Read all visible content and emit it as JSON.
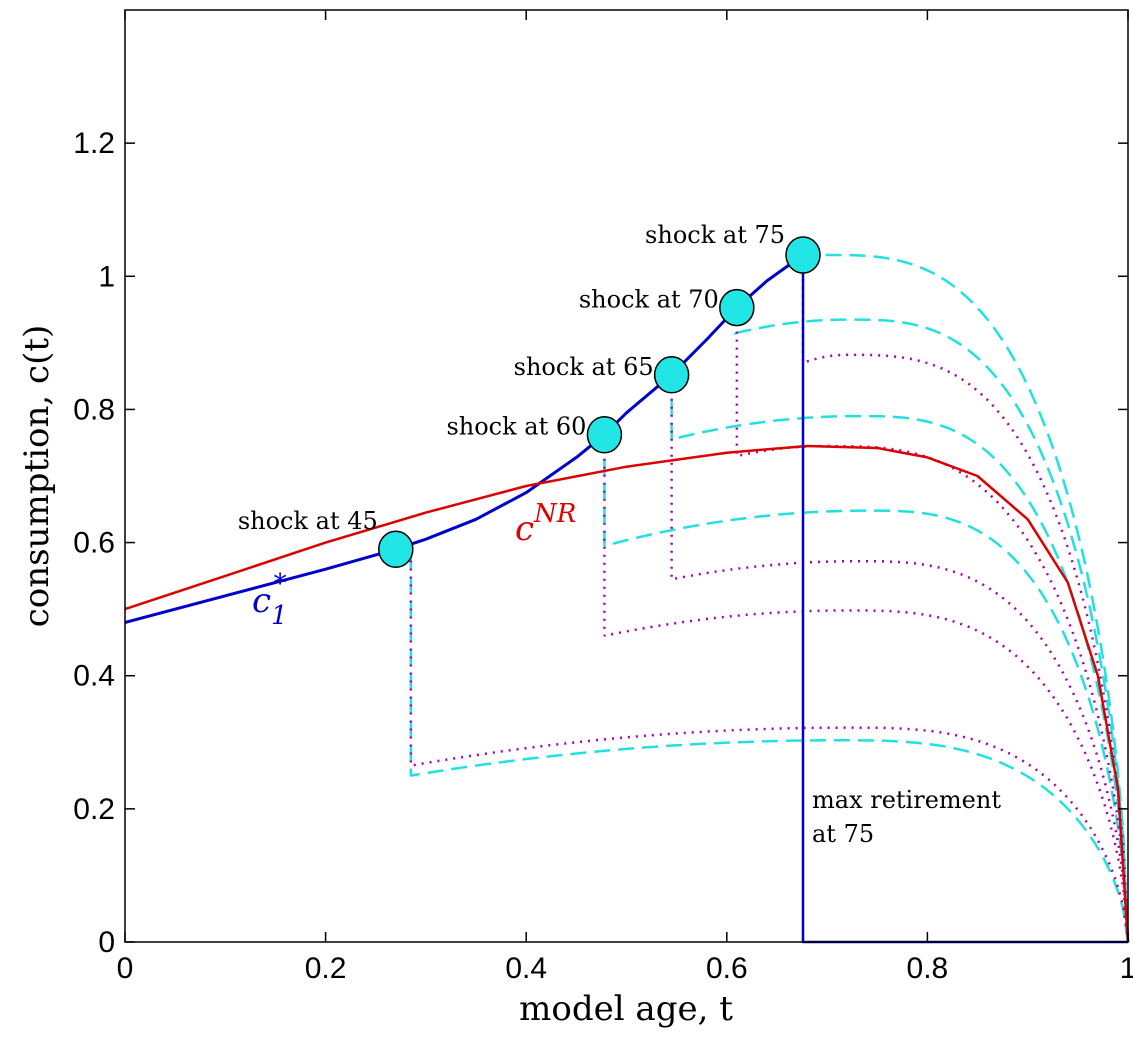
{
  "chart_data": {
    "type": "line",
    "xlabel": "model age, t",
    "ylabel": "consumption, c(t)",
    "xlim": [
      0,
      1
    ],
    "ylim": [
      0,
      1.4
    ],
    "xticks": [
      "0",
      "0.2",
      "0.4",
      "0.6",
      "0.8",
      "1"
    ],
    "yticks": [
      "0",
      "0.2",
      "0.4",
      "0.6",
      "0.8",
      "1",
      "1.2"
    ],
    "grid": false,
    "colors": {
      "c1_star": "#0000cc",
      "cNR": "#dd0000",
      "dashed": "#22e0e0",
      "dotted": "#aa00aa",
      "marker_fill": "#22e6e6"
    },
    "series": [
      {
        "name": "c1*",
        "style": "solid",
        "color": "#0000cc",
        "x": [
          0,
          0.1,
          0.2,
          0.27,
          0.3,
          0.35,
          0.4,
          0.45,
          0.478,
          0.5,
          0.545,
          0.58,
          0.61,
          0.64,
          0.676
        ],
        "y": [
          0.48,
          0.52,
          0.56,
          0.59,
          0.605,
          0.635,
          0.675,
          0.728,
          0.762,
          0.795,
          0.852,
          0.905,
          0.953,
          0.993,
          1.032
        ]
      },
      {
        "name": "cNR",
        "style": "solid",
        "color": "#dd0000",
        "x": [
          0,
          0.1,
          0.2,
          0.3,
          0.4,
          0.5,
          0.6,
          0.68,
          0.75,
          0.8,
          0.85,
          0.9,
          0.94,
          0.97,
          0.99,
          1.0
        ],
        "y": [
          0.5,
          0.55,
          0.6,
          0.645,
          0.685,
          0.714,
          0.735,
          0.745,
          0.742,
          0.728,
          0.7,
          0.635,
          0.54,
          0.4,
          0.23,
          0.0
        ]
      },
      {
        "name": "",
        "style": "max-retirement",
        "color": "#0000cc",
        "x": [
          0.676,
          0.676,
          1.0
        ],
        "y": [
          1.032,
          0.0,
          0.0
        ]
      },
      {
        "name": "",
        "style": "dashed",
        "color": "#22e0e0",
        "start_x": 0.285,
        "start_y": 0.25,
        "peak_x": 0.71,
        "peak_y": 0.303,
        "shock_x": 0.285,
        "shock_y": 0.585
      },
      {
        "name": "",
        "style": "dotted",
        "color": "#aa00aa",
        "start_x": 0.285,
        "start_y": 0.265,
        "peak_x": 0.72,
        "peak_y": 0.322,
        "shock_x": 0.285,
        "shock_y": 0.585
      },
      {
        "name": "",
        "style": "dashed",
        "color": "#22e0e0",
        "start_x": 0.478,
        "start_y": 0.595,
        "peak_x": 0.74,
        "peak_y": 0.648,
        "shock_x": 0.478,
        "shock_y": 0.762
      },
      {
        "name": "",
        "style": "dotted",
        "color": "#aa00aa",
        "start_x": 0.478,
        "start_y": 0.46,
        "peak_x": 0.72,
        "peak_y": 0.498,
        "shock_x": 0.478,
        "shock_y": 0.762
      },
      {
        "name": "",
        "style": "dashed",
        "color": "#22e0e0",
        "start_x": 0.545,
        "start_y": 0.755,
        "peak_x": 0.73,
        "peak_y": 0.79,
        "shock_x": 0.545,
        "shock_y": 0.852
      },
      {
        "name": "",
        "style": "dotted",
        "color": "#aa00aa",
        "start_x": 0.545,
        "start_y": 0.545,
        "peak_x": 0.73,
        "peak_y": 0.572,
        "shock_x": 0.545,
        "shock_y": 0.852
      },
      {
        "name": "",
        "style": "dashed",
        "color": "#22e0e0",
        "start_x": 0.61,
        "start_y": 0.915,
        "peak_x": 0.72,
        "peak_y": 0.935,
        "shock_x": 0.61,
        "shock_y": 0.953
      },
      {
        "name": "",
        "style": "dotted",
        "color": "#aa00aa",
        "start_x": 0.61,
        "start_y": 0.73,
        "peak_x": 0.7,
        "peak_y": 0.745,
        "shock_x": 0.61,
        "shock_y": 0.953
      },
      {
        "name": "",
        "style": "dashed",
        "color": "#22e0e0",
        "start_x": 0.676,
        "start_y": 1.03,
        "peak_x": 0.7,
        "peak_y": 1.032,
        "shock_x": 0.676,
        "shock_y": 1.032
      },
      {
        "name": "",
        "style": "dotted",
        "color": "#aa00aa",
        "start_x": 0.676,
        "start_y": 0.87,
        "peak_x": 0.72,
        "peak_y": 0.882,
        "shock_x": 0.676,
        "shock_y": 1.032
      }
    ],
    "markers": [
      {
        "x": 0.27,
        "y": 0.59,
        "label": "shock at 45"
      },
      {
        "x": 0.478,
        "y": 0.762,
        "label": "shock at 60"
      },
      {
        "x": 0.545,
        "y": 0.852,
        "label": "shock at 65"
      },
      {
        "x": 0.61,
        "y": 0.953,
        "label": "shock at 70"
      },
      {
        "x": 0.676,
        "y": 1.032,
        "label": "shock at 75"
      }
    ],
    "annotations": {
      "c1_label": "c",
      "c1_sub": "1",
      "c1_sup": "*",
      "cnr_label": "c",
      "cnr_sup": "NR",
      "max_retirement_line1": "max retirement",
      "max_retirement_line2": "at 75"
    }
  }
}
